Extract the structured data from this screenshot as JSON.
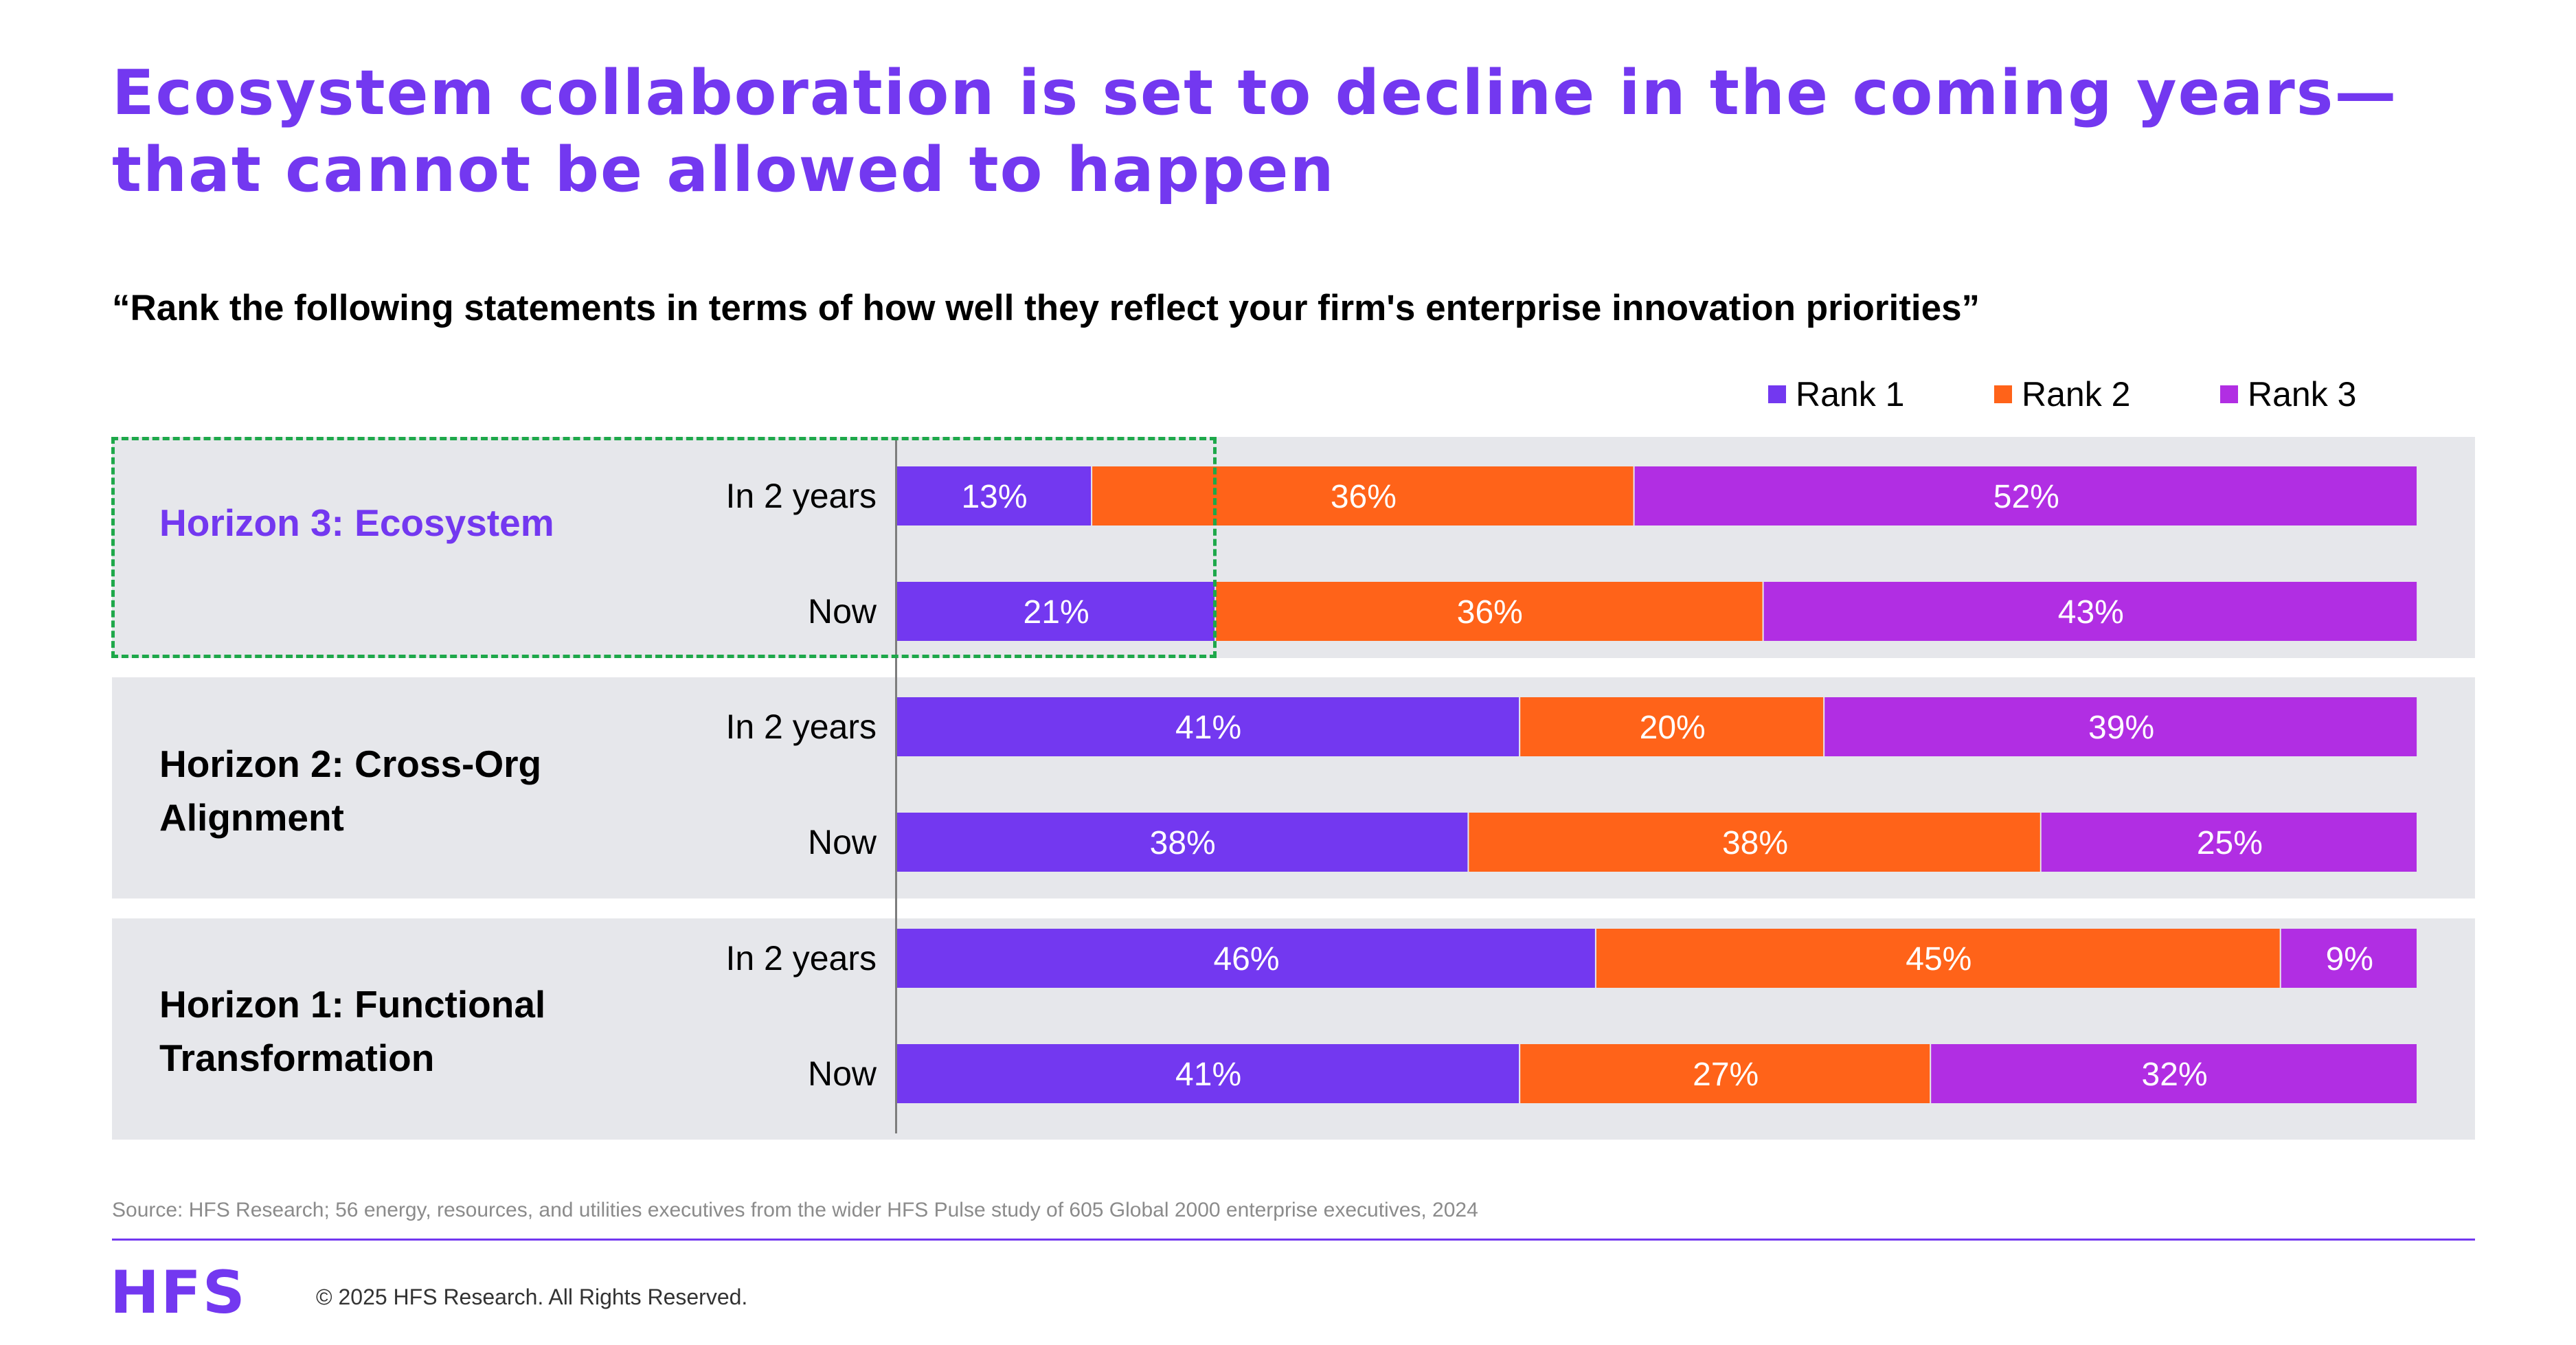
{
  "title": "Ecosystem collaboration is set to decline in the coming years—that cannot be allowed to happen",
  "question": "“Rank the following statements in terms of how well they reflect your firm's enterprise innovation priorities”",
  "colors": {
    "accent": "#7338f0",
    "rank1": "#7338f0",
    "rank2": "#ff6319",
    "rank3": "#b12ee3",
    "highlight": "#1ea84a",
    "band": "#e6e7eb"
  },
  "chart_data": {
    "type": "bar",
    "orientation": "horizontal",
    "stacked": true,
    "unit": "%",
    "legend": [
      "Rank 1",
      "Rank 2",
      "Rank 3"
    ],
    "legend_position": "top-right",
    "groups": [
      {
        "label": "Horizon 3: Ecosystem",
        "highlighted": true,
        "rows": [
          {
            "label": "In 2 years",
            "values": [
              13,
              36,
              52
            ]
          },
          {
            "label": "Now",
            "values": [
              21,
              36,
              43
            ]
          }
        ]
      },
      {
        "label": "Horizon 2: Cross-Org Alignment",
        "highlighted": false,
        "rows": [
          {
            "label": "In 2 years",
            "values": [
              41,
              20,
              39
            ]
          },
          {
            "label": "Now",
            "values": [
              38,
              38,
              25
            ]
          }
        ]
      },
      {
        "label": "Horizon 1: Functional Transformation",
        "highlighted": false,
        "rows": [
          {
            "label": "In 2 years",
            "values": [
              46,
              45,
              9
            ]
          },
          {
            "label": "Now",
            "values": [
              41,
              27,
              32
            ]
          }
        ]
      }
    ]
  },
  "source": "Source: HFS Research; 56 energy, resources, and utilities executives from the wider HFS Pulse study of 605 Global 2000 enterprise executives, 2024",
  "logo": "HFS",
  "copyright": "© 2025 HFS Research. All Rights Reserved."
}
